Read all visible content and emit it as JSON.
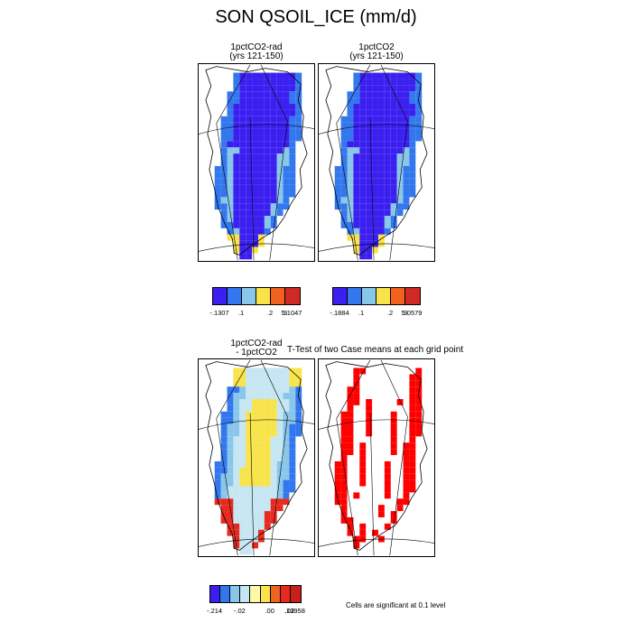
{
  "title": "SON QSOIL_ICE (mm/d)",
  "panels": {
    "p1": {
      "title_line1": "1pctCO2-rad",
      "title_line2": "(yrs 121-150)"
    },
    "p2": {
      "title_line1": "1pctCO2",
      "title_line2": "(yrs 121-150)"
    },
    "p3": {
      "title_line1": "1pctCO2-rad",
      "title_line2": "- 1pctCO2"
    },
    "p4": {
      "title": "T-Test of two Case means at each grid point"
    }
  },
  "legends": {
    "l1": {
      "colors": [
        "#3b1ff0",
        "#3377ee",
        "#88c6ea",
        "#f8e34a",
        "#f0621d",
        "#d02a24"
      ],
      "labels": [
        "-.1307",
        ".1",
        ".2",
        ".3",
        "5.1047"
      ]
    },
    "l2": {
      "colors": [
        "#3b1ff0",
        "#3377ee",
        "#88c6ea",
        "#f8e34a",
        "#f0621d",
        "#d02a24"
      ],
      "labels": [
        "-.1884",
        ".1",
        ".2",
        ".3",
        "5.0579"
      ]
    },
    "l3": {
      "colors": [
        "#3b1ff0",
        "#3377ee",
        "#88c6ea",
        "#c5e6f2",
        "#fff8a8",
        "#f8e34a",
        "#f0621d",
        "#e62a1f",
        "#c8201c"
      ],
      "labels": [
        "-.214",
        "-.02",
        ".00",
        ".02",
        ".13958"
      ]
    }
  },
  "significance_note": "Cells are significant at 0.1 level",
  "colors": {
    "significant": "#ff0000",
    "land_outline": "#000000",
    "grid_lines": "#000000"
  }
}
